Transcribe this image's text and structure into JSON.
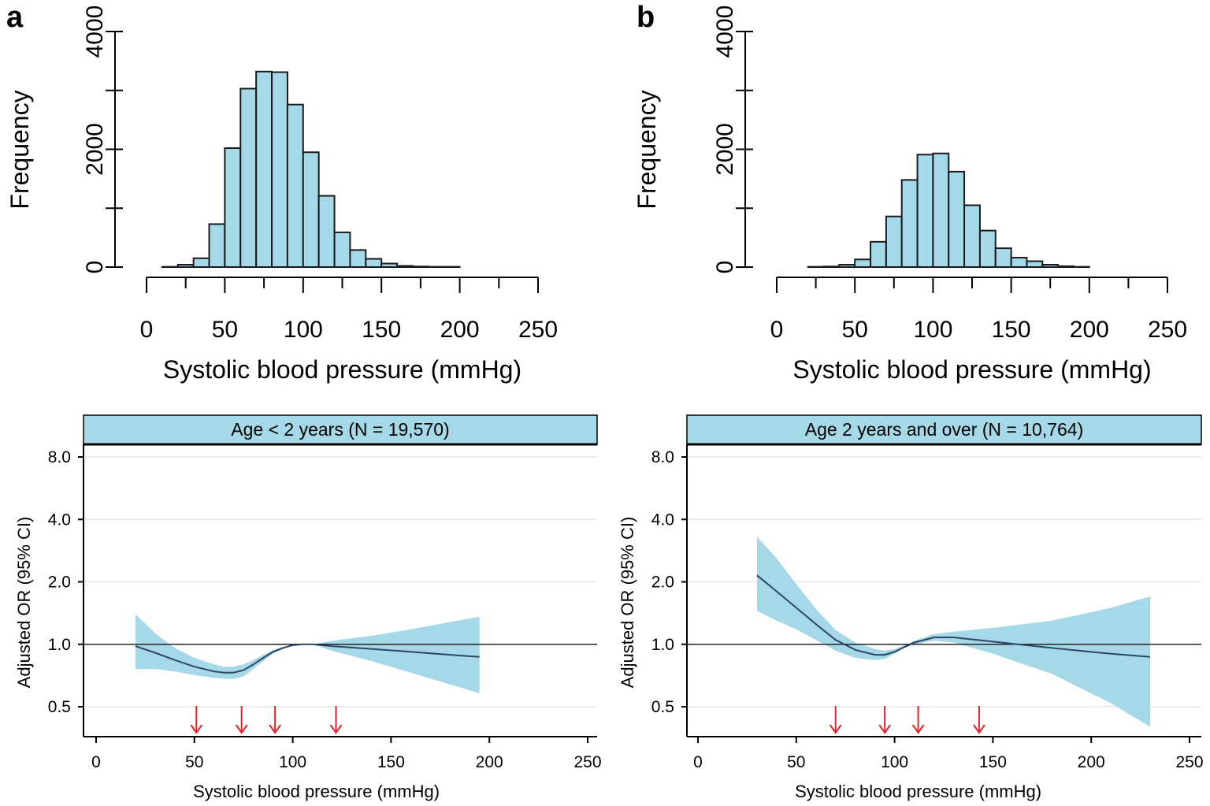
{
  "panels": {
    "a": {
      "letter": "a"
    },
    "b": {
      "letter": "b"
    }
  },
  "colors": {
    "bar_fill": "#a6d9e7",
    "ci_band": "#a6d9e7",
    "or_line": "#2c4766",
    "knot_arrows": "#e8222a",
    "strip_fill": "#a6d9e7"
  },
  "chart_data": [
    {
      "id": "hist_a",
      "type": "bar",
      "panel": "a",
      "xlabel": "Systolic blood pressure (mmHg)",
      "ylabel": "Frequency",
      "bin_width": 10,
      "bin_starts": [
        0,
        10,
        20,
        30,
        40,
        50,
        60,
        70,
        80,
        90,
        100,
        110,
        120,
        130,
        140,
        150,
        160,
        170,
        180,
        190,
        200,
        210,
        220,
        230,
        240
      ],
      "values": [
        0,
        5,
        40,
        150,
        730,
        2020,
        3030,
        3320,
        3310,
        2760,
        1950,
        1210,
        590,
        290,
        140,
        60,
        20,
        10,
        5,
        5,
        0,
        0,
        0,
        0,
        0
      ],
      "xlim": [
        0,
        250
      ],
      "ylim": [
        0,
        4000
      ],
      "x_ticks": [
        "0",
        "50",
        "100",
        "150",
        "200",
        "250"
      ],
      "y_ticks": [
        "0",
        "2000",
        "4000"
      ],
      "y_minor_ticks": [
        0,
        1000,
        2000,
        3000,
        4000
      ]
    },
    {
      "id": "hist_b",
      "type": "bar",
      "panel": "b",
      "xlabel": "Systolic blood pressure (mmHg)",
      "ylabel": "Frequency",
      "bin_width": 10,
      "bin_starts": [
        0,
        10,
        20,
        30,
        40,
        50,
        60,
        70,
        80,
        90,
        100,
        110,
        120,
        130,
        140,
        150,
        160,
        170,
        180,
        190,
        200,
        210,
        220,
        230,
        240
      ],
      "values": [
        0,
        0,
        5,
        10,
        40,
        130,
        430,
        860,
        1480,
        1910,
        1930,
        1620,
        1050,
        620,
        320,
        160,
        100,
        40,
        15,
        5,
        0,
        0,
        0,
        0,
        0
      ],
      "xlim": [
        0,
        250
      ],
      "ylim": [
        0,
        4000
      ],
      "x_ticks": [
        "0",
        "50",
        "100",
        "150",
        "200",
        "250"
      ],
      "y_ticks": [
        "0",
        "2000",
        "4000"
      ],
      "y_minor_ticks": [
        0,
        1000,
        2000,
        3000,
        4000
      ]
    },
    {
      "id": "spline_a",
      "type": "line",
      "panel": "a",
      "strip_title": "Age < 2 years (N = 19,570)",
      "xlabel": "Systolic blood pressure (mmHg)",
      "ylabel": "Adjusted OR (95% CI)",
      "xlim": [
        0,
        250
      ],
      "y_scale": "log",
      "y_tick_values": [
        0.5,
        1.0,
        2.0,
        4.0,
        8.0
      ],
      "y_tick_labels": [
        "0.5",
        "1.0",
        "2.0",
        "4.0",
        "8.0"
      ],
      "x_ticks": [
        "0",
        "50",
        "100",
        "150",
        "200",
        "250"
      ],
      "reference_or": 1.0,
      "x": [
        20,
        30,
        40,
        50,
        60,
        65,
        70,
        75,
        80,
        85,
        90,
        95,
        100,
        105,
        110,
        120,
        140,
        160,
        180,
        195
      ],
      "or": [
        0.98,
        0.91,
        0.84,
        0.78,
        0.74,
        0.73,
        0.73,
        0.75,
        0.8,
        0.86,
        0.92,
        0.96,
        0.99,
        1.0,
        1.0,
        0.98,
        0.95,
        0.92,
        0.89,
        0.87
      ],
      "lower": [
        0.76,
        0.76,
        0.74,
        0.71,
        0.69,
        0.68,
        0.68,
        0.7,
        0.76,
        0.83,
        0.9,
        0.95,
        0.99,
        1.0,
        1.0,
        0.93,
        0.83,
        0.73,
        0.64,
        0.58
      ],
      "upper": [
        1.4,
        1.13,
        0.96,
        0.86,
        0.8,
        0.78,
        0.78,
        0.8,
        0.84,
        0.89,
        0.94,
        0.97,
        1.0,
        1.0,
        1.0,
        1.04,
        1.1,
        1.18,
        1.28,
        1.36
      ],
      "knots": [
        51,
        74,
        91,
        122
      ]
    },
    {
      "id": "spline_b",
      "type": "line",
      "panel": "b",
      "strip_title": "Age 2 years and over (N = 10,764)",
      "xlabel": "Systolic blood pressure (mmHg)",
      "ylabel": "Adjusted OR (95% CI)",
      "xlim": [
        0,
        250
      ],
      "y_scale": "log",
      "y_tick_values": [
        0.5,
        1.0,
        2.0,
        4.0,
        8.0
      ],
      "y_tick_labels": [
        "0.5",
        "1.0",
        "2.0",
        "4.0",
        "8.0"
      ],
      "x_ticks": [
        "0",
        "50",
        "100",
        "150",
        "200",
        "250"
      ],
      "reference_or": 1.0,
      "x": [
        30,
        40,
        50,
        60,
        70,
        80,
        90,
        95,
        100,
        105,
        110,
        120,
        130,
        150,
        180,
        210,
        230
      ],
      "or": [
        2.15,
        1.8,
        1.5,
        1.25,
        1.05,
        0.94,
        0.89,
        0.89,
        0.92,
        0.97,
        1.02,
        1.08,
        1.08,
        1.03,
        0.96,
        0.9,
        0.87
      ],
      "lower": [
        1.45,
        1.3,
        1.18,
        1.05,
        0.93,
        0.86,
        0.84,
        0.85,
        0.9,
        0.96,
        1.0,
        1.04,
        1.02,
        0.9,
        0.72,
        0.52,
        0.4
      ],
      "upper": [
        3.3,
        2.6,
        1.95,
        1.48,
        1.17,
        1.02,
        0.95,
        0.93,
        0.95,
        0.99,
        1.04,
        1.12,
        1.15,
        1.2,
        1.3,
        1.5,
        1.7
      ],
      "knots": [
        70,
        95,
        112,
        143
      ]
    }
  ]
}
